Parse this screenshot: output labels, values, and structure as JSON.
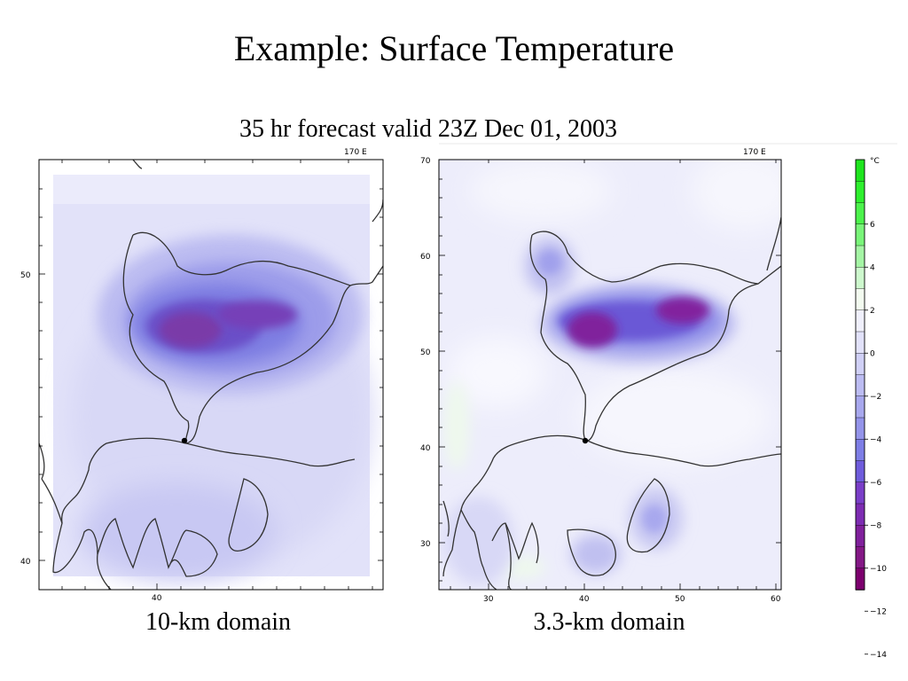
{
  "slide": {
    "title": "Example: Surface Temperature",
    "subtitle": "35 hr forecast valid 23Z Dec 01, 2003"
  },
  "maps": [
    {
      "label": "10-km domain",
      "top_label": "170 E",
      "y_ticks": [
        "50",
        "40"
      ],
      "x_ticks": [
        "40"
      ]
    },
    {
      "label": "3.3-km domain",
      "top_label": "170 E",
      "y_ticks": [
        "70",
        "60",
        "50",
        "40",
        "30"
      ],
      "x_ticks": [
        "30",
        "40",
        "50",
        "60"
      ]
    }
  ],
  "legend": {
    "unit": "°C",
    "tick_labels": [
      "6",
      "4",
      "2",
      "0",
      "-2",
      "-4",
      "-6",
      "-8",
      "-10",
      "-12",
      "-14"
    ],
    "colors": [
      "#1ee51e",
      "#2ef02e",
      "#4cf34c",
      "#79f579",
      "#a5f5a5",
      "#cdf8cd",
      "#f3fbf0",
      "#f0f0fc",
      "#e2e2fa",
      "#d0d0f6",
      "#bcbcf2",
      "#a8a8ee",
      "#9494ea",
      "#7e7ee6",
      "#6f5cdc",
      "#7a3ec8",
      "#7d2cb2",
      "#80209c",
      "#841886",
      "#7c006e"
    ]
  }
}
